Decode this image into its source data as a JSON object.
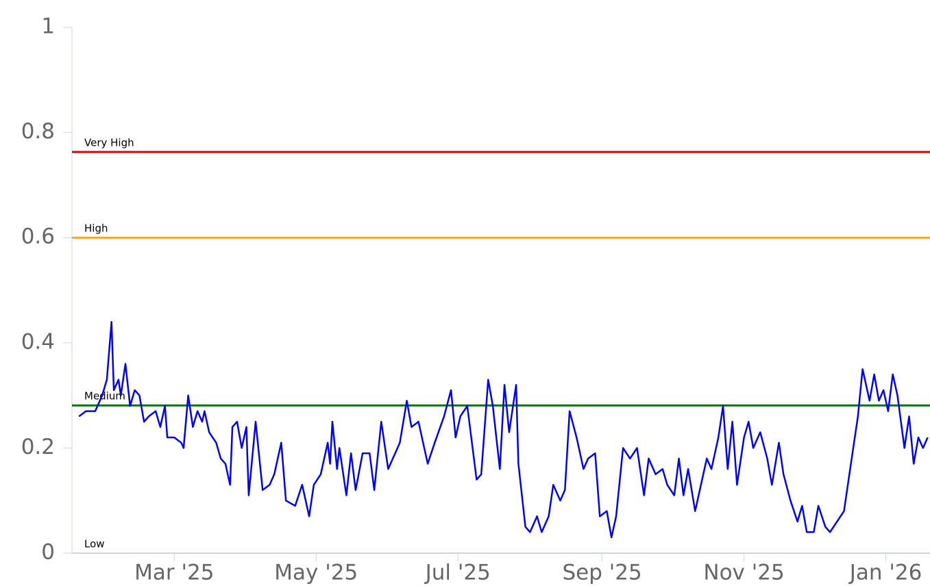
{
  "chart_data": {
    "type": "line",
    "x": [
      -41,
      -38,
      -34,
      -31,
      -29,
      -27,
      -26,
      -24,
      -23,
      -21,
      -19,
      -17,
      -15,
      -13,
      -11,
      -8,
      -6,
      -4,
      -3,
      0,
      3,
      4,
      6,
      8,
      10,
      12,
      13,
      15,
      18,
      20,
      22,
      24,
      25,
      27,
      29,
      31,
      32,
      35,
      38,
      41,
      43,
      46,
      48,
      52,
      55,
      58,
      60,
      63,
      66,
      67,
      68,
      70,
      71,
      74,
      76,
      78,
      81,
      84,
      86,
      89,
      92,
      94,
      97,
      100,
      102,
      105,
      109,
      112,
      116,
      119,
      121,
      123,
      126,
      130,
      132,
      135,
      137,
      140,
      142,
      144,
      147,
      148,
      151,
      153,
      156,
      158,
      161,
      163,
      166,
      168,
      170,
      173,
      176,
      178,
      181,
      183,
      186,
      188,
      190,
      193,
      196,
      199,
      202,
      204,
      207,
      210,
      212,
      215,
      217,
      219,
      221,
      224,
      226,
      229,
      231,
      234,
      236,
      238,
      240,
      242,
      245,
      247,
      249,
      252,
      255,
      257,
      260,
      262,
      265,
      268,
      270,
      272,
      275,
      277,
      280,
      282,
      285,
      288,
      291,
      294,
      296,
      299,
      301,
      303,
      305,
      307,
      309,
      311,
      314,
      316,
      318,
      320,
      322,
      324
    ],
    "series": [
      {
        "color": "#0000ff",
        "values": [
          0.26,
          0.27,
          0.27,
          0.3,
          0.33,
          0.44,
          0.31,
          0.33,
          0.3,
          0.36,
          0.28,
          0.31,
          0.3,
          0.25,
          0.26,
          0.27,
          0.24,
          0.28,
          0.22,
          0.22,
          0.21,
          0.2,
          0.3,
          0.24,
          0.27,
          0.25,
          0.27,
          0.23,
          0.21,
          0.18,
          0.17,
          0.13,
          0.24,
          0.25,
          0.2,
          0.24,
          0.11,
          0.25,
          0.12,
          0.13,
          0.15,
          0.21,
          0.1,
          0.09,
          0.13,
          0.07,
          0.13,
          0.15,
          0.21,
          0.17,
          0.25,
          0.16,
          0.2,
          0.11,
          0.19,
          0.12,
          0.19,
          0.19,
          0.12,
          0.25,
          0.16,
          0.18,
          0.21,
          0.29,
          0.24,
          0.25,
          0.17,
          0.21,
          0.26,
          0.31,
          0.22,
          0.26,
          0.28,
          0.14,
          0.15,
          0.33,
          0.28,
          0.16,
          0.32,
          0.23,
          0.32,
          0.17,
          0.05,
          0.04,
          0.07,
          0.04,
          0.07,
          0.13,
          0.1,
          0.12,
          0.27,
          0.22,
          0.16,
          0.18,
          0.19,
          0.07,
          0.08,
          0.03,
          0.07,
          0.2,
          0.18,
          0.2,
          0.11,
          0.18,
          0.15,
          0.16,
          0.13,
          0.11,
          0.18,
          0.11,
          0.16,
          0.08,
          0.12,
          0.18,
          0.16,
          0.22,
          0.28,
          0.16,
          0.25,
          0.13,
          0.22,
          0.25,
          0.2,
          0.23,
          0.18,
          0.13,
          0.21,
          0.15,
          0.1,
          0.06,
          0.09,
          0.04,
          0.04,
          0.09,
          0.05,
          0.04,
          0.06,
          0.08,
          0.17,
          0.26,
          0.35,
          0.29,
          0.34,
          0.29,
          0.31,
          0.27,
          0.34,
          0.3,
          0.2,
          0.26,
          0.17,
          0.22,
          0.2,
          0.22
        ]
      }
    ],
    "xlim": [
      -44,
      325
    ],
    "xticks": [
      {
        "value": 0,
        "label": "Mar '25"
      },
      {
        "value": 61,
        "label": "May '25"
      },
      {
        "value": 122,
        "label": "Jul '25"
      },
      {
        "value": 184,
        "label": "Sep '25"
      },
      {
        "value": 245,
        "label": "Nov '25"
      },
      {
        "value": 306,
        "label": "Jan '26"
      }
    ],
    "ylim": [
      0,
      1
    ],
    "yticks": [
      0,
      0.2,
      0.4,
      0.6,
      0.8,
      1
    ],
    "bands": [
      {
        "label": "Very High",
        "value": 0.763,
        "color": "#e00000"
      },
      {
        "label": "High",
        "value": 0.6,
        "color": "#f5a623"
      },
      {
        "label": "Medium",
        "value": 0.281,
        "color": "#007a00"
      },
      {
        "label": "Low",
        "value": 0
      }
    ]
  }
}
